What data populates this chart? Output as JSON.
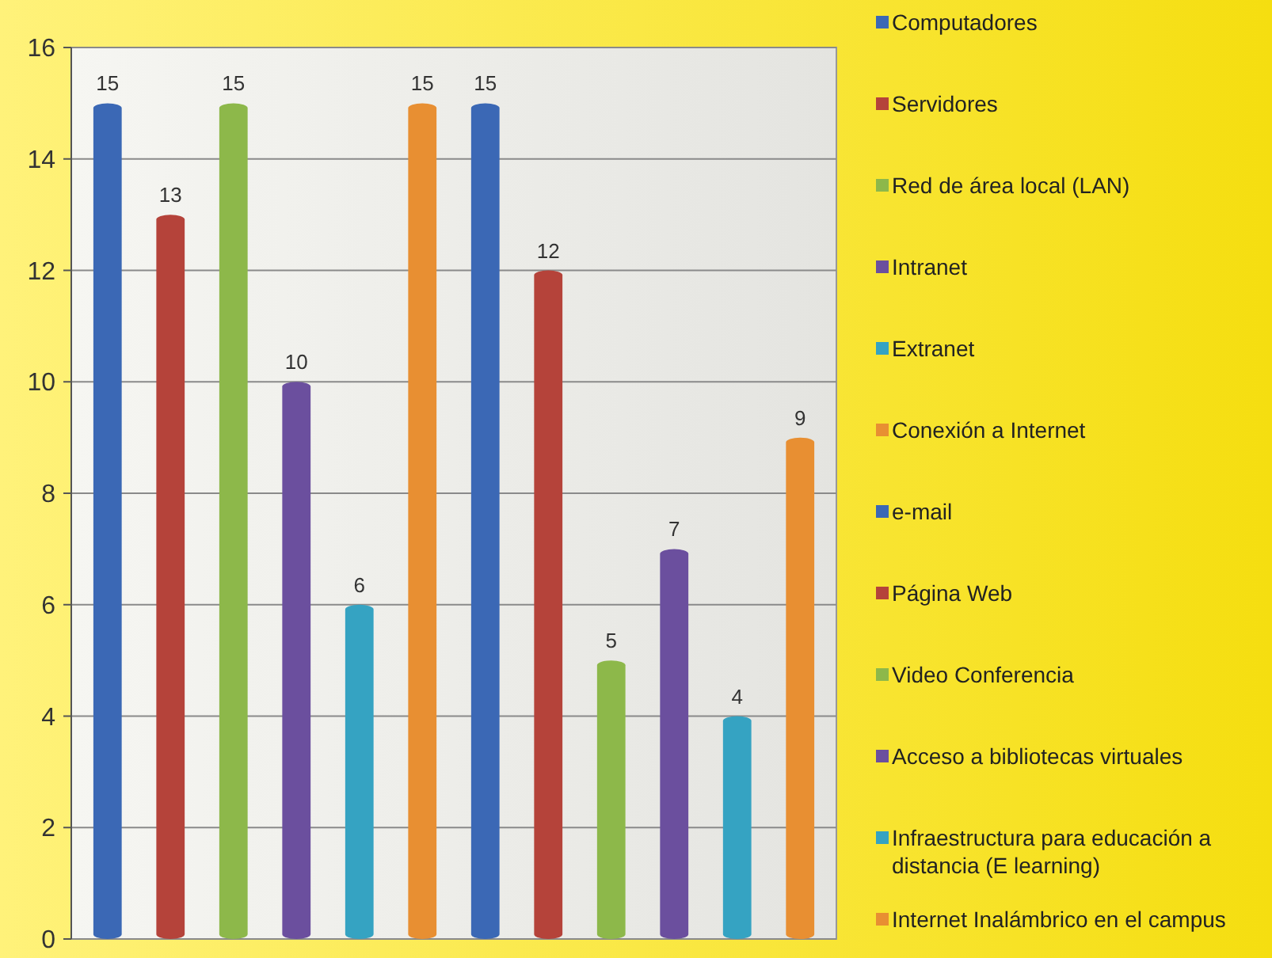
{
  "chart_data": {
    "type": "bar",
    "categories": [
      null,
      null,
      null,
      null,
      null,
      null,
      null,
      null,
      null,
      null,
      null,
      null
    ],
    "series": [
      {
        "name": "Computadores",
        "color": "#3b68b5",
        "values": [
          15,
          null,
          null,
          null,
          null,
          null,
          null,
          null,
          null,
          null,
          null,
          null
        ]
      },
      {
        "name": "Servidores",
        "color": "#b5433a",
        "values": [
          null,
          13,
          null,
          null,
          null,
          null,
          null,
          null,
          null,
          null,
          null,
          null
        ]
      },
      {
        "name": "Red de área local (LAN)",
        "color": "#8db84a",
        "values": [
          null,
          null,
          15,
          null,
          null,
          null,
          null,
          null,
          null,
          null,
          null,
          null
        ]
      },
      {
        "name": "Intranet",
        "color": "#6b4f9e",
        "values": [
          null,
          null,
          null,
          10,
          null,
          null,
          null,
          null,
          null,
          null,
          null,
          null
        ]
      },
      {
        "name": "Extranet",
        "color": "#35a3c2",
        "values": [
          null,
          null,
          null,
          null,
          6,
          null,
          null,
          null,
          null,
          null,
          null,
          null
        ]
      },
      {
        "name": "Conexión a Internet",
        "color": "#e88f32",
        "values": [
          null,
          null,
          null,
          null,
          null,
          15,
          null,
          null,
          null,
          null,
          null,
          null
        ]
      },
      {
        "name": "e-mail",
        "color": "#3b68b5",
        "values": [
          null,
          null,
          null,
          null,
          null,
          null,
          15,
          null,
          null,
          null,
          null,
          null
        ]
      },
      {
        "name": "Página Web",
        "color": "#b5433a",
        "values": [
          null,
          null,
          null,
          null,
          null,
          null,
          null,
          12,
          null,
          null,
          null,
          null
        ]
      },
      {
        "name": "Video Conferencia",
        "color": "#8db84a",
        "values": [
          null,
          null,
          null,
          null,
          null,
          null,
          null,
          null,
          5,
          null,
          null,
          null
        ]
      },
      {
        "name": "Acceso a bibliotecas virtuales",
        "color": "#6b4f9e",
        "values": [
          null,
          null,
          null,
          null,
          null,
          null,
          null,
          null,
          null,
          7,
          null,
          null
        ]
      },
      {
        "name": "Infraestructura para educación a distancia (E learning)",
        "color": "#35a3c2",
        "values": [
          null,
          null,
          null,
          null,
          null,
          null,
          null,
          null,
          null,
          null,
          4,
          null
        ]
      },
      {
        "name": "Internet Inalámbrico en el campus",
        "color": "#e88f32",
        "values": [
          null,
          null,
          null,
          null,
          null,
          null,
          null,
          null,
          null,
          null,
          null,
          9
        ]
      }
    ],
    "ylim": [
      0,
      16
    ],
    "yticks": [
      0,
      2,
      4,
      6,
      8,
      10,
      12,
      14,
      16
    ],
    "grid": "y",
    "legend": "right",
    "data_labels": true
  }
}
